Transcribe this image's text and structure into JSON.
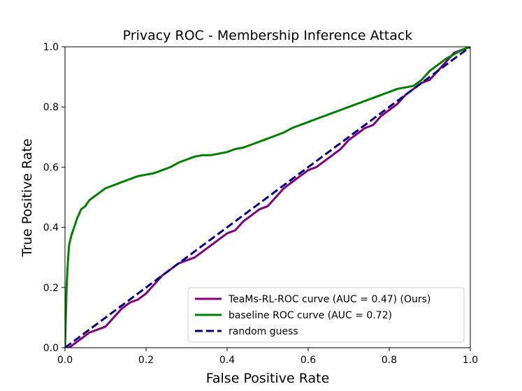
{
  "chart_data": {
    "type": "line",
    "title": "Privacy ROC - Membership Inference Attack",
    "xlabel": "False Positive Rate",
    "ylabel": "True Positive Rate",
    "xlim": [
      0.0,
      1.0
    ],
    "ylim": [
      0.0,
      1.0
    ],
    "xticks": [
      "0.0",
      "0.2",
      "0.4",
      "0.6",
      "0.8",
      "1.0"
    ],
    "yticks": [
      "0.0",
      "0.2",
      "0.4",
      "0.6",
      "0.8",
      "1.0"
    ],
    "legend_position": "lower-right",
    "series": [
      {
        "name": "TeaMs-RL-ROC curve (AUC = 0.47) (Ours)",
        "color": "#800080",
        "style": "solid",
        "x": [
          0.0,
          0.01,
          0.02,
          0.04,
          0.06,
          0.08,
          0.1,
          0.12,
          0.14,
          0.16,
          0.18,
          0.2,
          0.22,
          0.24,
          0.26,
          0.28,
          0.3,
          0.32,
          0.34,
          0.36,
          0.38,
          0.4,
          0.42,
          0.44,
          0.46,
          0.48,
          0.5,
          0.52,
          0.54,
          0.56,
          0.58,
          0.6,
          0.62,
          0.64,
          0.66,
          0.68,
          0.7,
          0.72,
          0.74,
          0.76,
          0.78,
          0.8,
          0.82,
          0.84,
          0.86,
          0.88,
          0.9,
          0.92,
          0.94,
          0.96,
          0.98,
          1.0
        ],
        "y": [
          0.0,
          0.0,
          0.01,
          0.03,
          0.05,
          0.06,
          0.07,
          0.1,
          0.13,
          0.15,
          0.16,
          0.18,
          0.21,
          0.24,
          0.26,
          0.28,
          0.29,
          0.3,
          0.32,
          0.34,
          0.36,
          0.38,
          0.39,
          0.42,
          0.44,
          0.46,
          0.47,
          0.5,
          0.53,
          0.55,
          0.57,
          0.59,
          0.6,
          0.62,
          0.64,
          0.66,
          0.69,
          0.71,
          0.73,
          0.74,
          0.77,
          0.79,
          0.81,
          0.84,
          0.86,
          0.88,
          0.89,
          0.92,
          0.95,
          0.98,
          0.99,
          1.0
        ]
      },
      {
        "name": "baseline ROC curve (AUC = 0.72)",
        "color": "#008000",
        "style": "solid",
        "x": [
          0.0,
          0.002,
          0.004,
          0.006,
          0.008,
          0.01,
          0.015,
          0.02,
          0.025,
          0.03,
          0.04,
          0.05,
          0.06,
          0.07,
          0.08,
          0.1,
          0.12,
          0.14,
          0.16,
          0.18,
          0.2,
          0.22,
          0.24,
          0.26,
          0.28,
          0.3,
          0.32,
          0.34,
          0.36,
          0.38,
          0.4,
          0.42,
          0.44,
          0.46,
          0.48,
          0.5,
          0.52,
          0.54,
          0.56,
          0.58,
          0.6,
          0.62,
          0.64,
          0.66,
          0.68,
          0.7,
          0.72,
          0.74,
          0.76,
          0.78,
          0.8,
          0.82,
          0.84,
          0.86,
          0.88,
          0.9,
          0.92,
          0.94,
          0.96,
          0.98,
          1.0
        ],
        "y": [
          0.0,
          0.1,
          0.2,
          0.26,
          0.3,
          0.34,
          0.37,
          0.39,
          0.41,
          0.43,
          0.46,
          0.47,
          0.49,
          0.5,
          0.51,
          0.53,
          0.54,
          0.55,
          0.56,
          0.57,
          0.575,
          0.58,
          0.59,
          0.6,
          0.615,
          0.625,
          0.635,
          0.64,
          0.64,
          0.645,
          0.65,
          0.66,
          0.665,
          0.675,
          0.685,
          0.695,
          0.705,
          0.715,
          0.73,
          0.74,
          0.75,
          0.76,
          0.77,
          0.78,
          0.79,
          0.8,
          0.81,
          0.82,
          0.83,
          0.84,
          0.85,
          0.86,
          0.865,
          0.87,
          0.89,
          0.92,
          0.94,
          0.96,
          0.975,
          0.99,
          1.0
        ]
      },
      {
        "name": "random guess",
        "color": "#000080",
        "style": "dashed",
        "x": [
          0.0,
          1.0
        ],
        "y": [
          0.0,
          1.0
        ]
      }
    ]
  }
}
